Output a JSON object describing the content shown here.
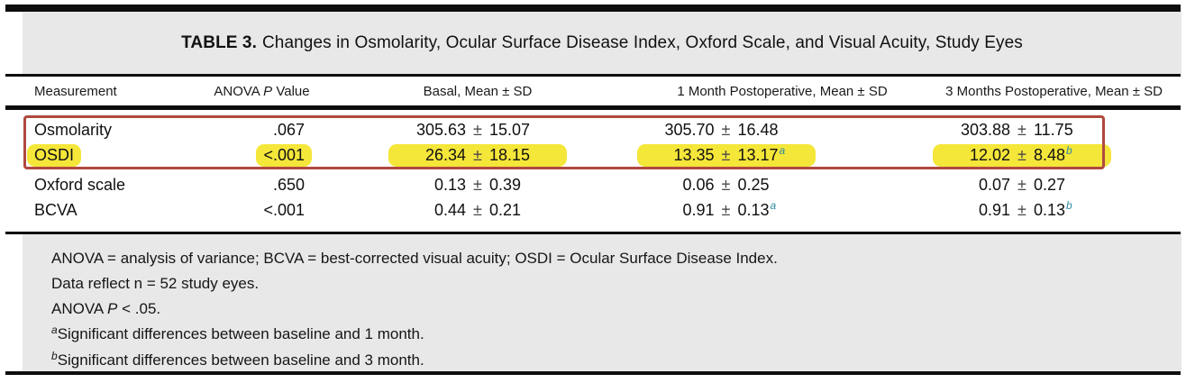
{
  "title": {
    "label_bold": "TABLE 3.",
    "label_rest": "Changes in Osmolarity, Ocular Surface Disease Index, Oxford Scale, and Visual Acuity, Study Eyes"
  },
  "columns": {
    "measurement": "Measurement",
    "anova_pre": "ANOVA ",
    "anova_italic": "P",
    "anova_post": " Value",
    "basal": "Basal, Mean ± SD",
    "month1": "1 Month Postoperative, Mean ± SD",
    "month3": "3 Months Postoperative, Mean ± SD"
  },
  "pm": "±",
  "rows": [
    {
      "measurement": "Osmolarity",
      "p_value": ".067",
      "basal": {
        "mean": "305.63",
        "sd": "15.07",
        "sup": ""
      },
      "m1": {
        "mean": "305.70",
        "sd": "16.48",
        "sup": ""
      },
      "m3": {
        "mean": "303.88",
        "sd": "11.75",
        "sup": ""
      }
    },
    {
      "measurement": "OSDI",
      "p_value": "<.001",
      "basal": {
        "mean": "26.34",
        "sd": "18.15",
        "sup": ""
      },
      "m1": {
        "mean": "13.35",
        "sd": "13.17",
        "sup": "a"
      },
      "m3": {
        "mean": "12.02",
        "sd": "8.48",
        "sup": "b"
      }
    },
    {
      "measurement": "Oxford scale",
      "p_value": ".650",
      "basal": {
        "mean": "0.13",
        "sd": "0.39",
        "sup": ""
      },
      "m1": {
        "mean": "0.06",
        "sd": "0.25",
        "sup": ""
      },
      "m3": {
        "mean": "0.07",
        "sd": "0.27",
        "sup": ""
      }
    },
    {
      "measurement": "BCVA",
      "p_value": "<.001",
      "basal": {
        "mean": "0.44",
        "sd": "0.21",
        "sup": ""
      },
      "m1": {
        "mean": "0.91",
        "sd": "0.13",
        "sup": "a"
      },
      "m3": {
        "mean": "0.91",
        "sd": "0.13",
        "sup": "b"
      }
    }
  ],
  "footnotes": {
    "abbrev": "ANOVA = analysis of variance; BCVA = best-corrected visual acuity; OSDI = Ocular Surface Disease Index.",
    "n_line": "Data reflect n = 52 study eyes.",
    "p_line": {
      "pre": "ANOVA ",
      "italic": "P",
      "post": " < .05."
    },
    "note_a": {
      "sup": "a",
      "text": "Significant differences between baseline and 1 month."
    },
    "note_b": {
      "sup": "b",
      "text": "Significant differences between baseline and 3 month."
    }
  },
  "annotations": {
    "red_box": "box around Osmolarity and OSDI rows",
    "yellow_highlight": "OSDI row cells highlighted"
  },
  "colors": {
    "highlight_yellow": "#f5e63a",
    "red_box": "#b0493f",
    "superscript_teal": "#2e8aa0",
    "panel_gray": "#e8e8e8",
    "rule_black": "#0d0d0d"
  }
}
